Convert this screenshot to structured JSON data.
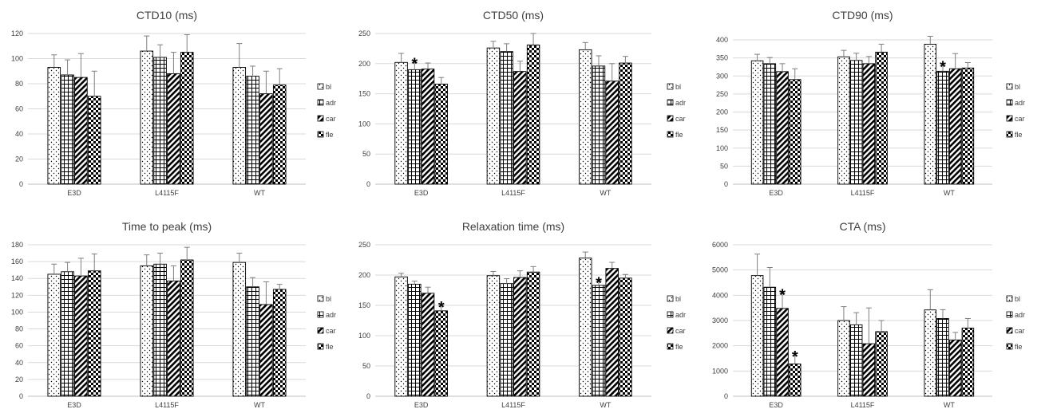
{
  "legend_labels": [
    "bl",
    "adr",
    "car",
    "fle"
  ],
  "pattern_names": [
    "dots",
    "grid",
    "diagonal-stripes",
    "checker"
  ],
  "colors": {
    "bar_stroke": "#000000",
    "error_bar": "#7f7f7f",
    "gridline": "#d9d9d9",
    "text": "#404040"
  },
  "chart_data": [
    {
      "type": "bar",
      "title": "CTD10 (ms)",
      "categories": [
        "E3D",
        "L4115F",
        "WT"
      ],
      "ylim": [
        0,
        120
      ],
      "yticks": [
        0,
        20,
        40,
        60,
        80,
        100,
        120
      ],
      "legend": "right",
      "grid": true,
      "series": [
        {
          "name": "bl",
          "values": [
            93,
            106,
            93
          ],
          "errors": [
            10,
            12,
            19
          ]
        },
        {
          "name": "adr",
          "values": [
            87,
            101,
            86
          ],
          "errors": [
            12,
            10,
            8
          ]
        },
        {
          "name": "car",
          "values": [
            85,
            88,
            72
          ],
          "errors": [
            19,
            17,
            18
          ]
        },
        {
          "name": "fle",
          "values": [
            70,
            105,
            79
          ],
          "errors": [
            20,
            14,
            13
          ]
        }
      ],
      "significant": []
    },
    {
      "type": "bar",
      "title": "CTD50 (ms)",
      "categories": [
        "E3D",
        "L4115F",
        "WT"
      ],
      "ylim": [
        0,
        250
      ],
      "yticks": [
        0,
        50,
        100,
        150,
        200,
        250
      ],
      "legend": "right",
      "grid": true,
      "series": [
        {
          "name": "bl",
          "values": [
            202,
            226,
            223
          ],
          "errors": [
            15,
            11,
            12
          ]
        },
        {
          "name": "adr",
          "values": [
            190,
            220,
            196
          ],
          "errors": [
            12,
            13,
            17
          ]
        },
        {
          "name": "car",
          "values": [
            191,
            187,
            171
          ],
          "errors": [
            10,
            17,
            29
          ]
        },
        {
          "name": "fle",
          "values": [
            166,
            231,
            201
          ],
          "errors": [
            11,
            19,
            11
          ]
        }
      ],
      "significant": [
        {
          "category": 0,
          "series": 1
        }
      ]
    },
    {
      "type": "bar",
      "title": "CTD90 (ms)",
      "categories": [
        "E3D",
        "L4115F",
        "WT"
      ],
      "ylim": [
        0,
        400
      ],
      "yticks": [
        0,
        50,
        100,
        150,
        200,
        250,
        300,
        350,
        400
      ],
      "legend": "right",
      "grid": true,
      "series": [
        {
          "name": "bl",
          "values": [
            342,
            353,
            388
          ],
          "errors": [
            18,
            18,
            22
          ]
        },
        {
          "name": "adr",
          "values": [
            334,
            343,
            313
          ],
          "errors": [
            17,
            20,
            15
          ]
        },
        {
          "name": "car",
          "values": [
            312,
            334,
            320
          ],
          "errors": [
            22,
            20,
            42
          ]
        },
        {
          "name": "fle",
          "values": [
            290,
            366,
            322
          ],
          "errors": [
            30,
            22,
            15
          ]
        }
      ],
      "significant": [
        {
          "category": 2,
          "series": 1
        }
      ]
    },
    {
      "type": "bar",
      "title": "Time to peak (ms)",
      "categories": [
        "E3D",
        "L4115F",
        "WT"
      ],
      "ylim": [
        0,
        180
      ],
      "yticks": [
        0,
        20,
        40,
        60,
        80,
        100,
        120,
        140,
        160,
        180
      ],
      "legend": "right",
      "grid": true,
      "series": [
        {
          "name": "bl",
          "values": [
            145,
            155,
            159
          ],
          "errors": [
            12,
            13,
            11
          ]
        },
        {
          "name": "adr",
          "values": [
            148,
            157,
            130
          ],
          "errors": [
            11,
            13,
            11
          ]
        },
        {
          "name": "car",
          "values": [
            143,
            137,
            109
          ],
          "errors": [
            21,
            18,
            27
          ]
        },
        {
          "name": "fle",
          "values": [
            149,
            162,
            127
          ],
          "errors": [
            20,
            15,
            6
          ]
        }
      ],
      "significant": []
    },
    {
      "type": "bar",
      "title": "Relaxation time (ms)",
      "categories": [
        "E3D",
        "L4115F",
        "WT"
      ],
      "ylim": [
        0,
        250
      ],
      "yticks": [
        0,
        50,
        100,
        150,
        200,
        250
      ],
      "legend": "right",
      "grid": true,
      "series": [
        {
          "name": "bl",
          "values": [
            197,
            199,
            228
          ],
          "errors": [
            6,
            7,
            10
          ]
        },
        {
          "name": "adr",
          "values": [
            185,
            186,
            183
          ],
          "errors": [
            5,
            8,
            6
          ]
        },
        {
          "name": "car",
          "values": [
            170,
            196,
            211
          ],
          "errors": [
            10,
            11,
            10
          ]
        },
        {
          "name": "fle",
          "values": [
            141,
            205,
            195
          ],
          "errors": [
            8,
            9,
            6
          ]
        }
      ],
      "significant": [
        {
          "category": 0,
          "series": 3
        },
        {
          "category": 2,
          "series": 1
        }
      ]
    },
    {
      "type": "bar",
      "title": "CTA (ms)",
      "categories": [
        "E3D",
        "L4115F",
        "WT"
      ],
      "ylim": [
        0,
        6000
      ],
      "yticks": [
        0,
        1000,
        2000,
        3000,
        4000,
        5000,
        6000
      ],
      "legend": "right",
      "grid": true,
      "series": [
        {
          "name": "bl",
          "values": [
            4780,
            3000,
            3420
          ],
          "errors": [
            850,
            550,
            800
          ]
        },
        {
          "name": "adr",
          "values": [
            4320,
            2830,
            3080
          ],
          "errors": [
            780,
            480,
            350
          ]
        },
        {
          "name": "car",
          "values": [
            3480,
            2080,
            2230
          ],
          "errors": [
            580,
            1420,
            300
          ]
        },
        {
          "name": "fle",
          "values": [
            1280,
            2560,
            2700
          ],
          "errors": [
            330,
            440,
            380
          ]
        }
      ],
      "significant": [
        {
          "category": 0,
          "series": 2
        },
        {
          "category": 0,
          "series": 3
        }
      ]
    }
  ]
}
